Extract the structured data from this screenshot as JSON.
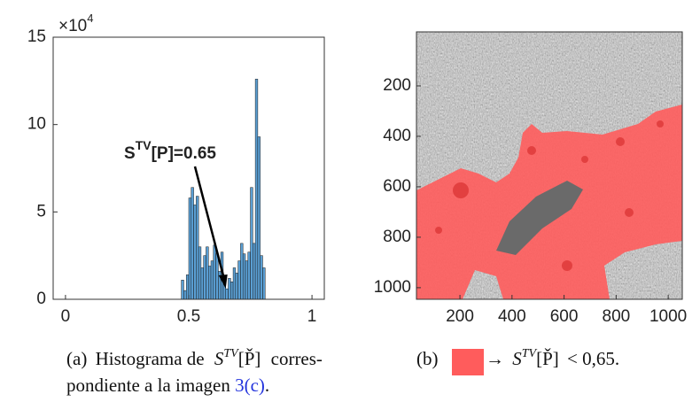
{
  "chart_data": [
    {
      "type": "histogram",
      "exponent_base": "×10",
      "exponent": "4",
      "bins": [
        0.47,
        0.48,
        0.49,
        0.5,
        0.51,
        0.52,
        0.53,
        0.54,
        0.55,
        0.56,
        0.57,
        0.58,
        0.59,
        0.6,
        0.61,
        0.62,
        0.63,
        0.64,
        0.65,
        0.66,
        0.67,
        0.68,
        0.69,
        0.7,
        0.71,
        0.72,
        0.73,
        0.74,
        0.75,
        0.76,
        0.77,
        0.78,
        0.79,
        0.8,
        0.81
      ],
      "values": [
        1.1,
        0.5,
        1.4,
        5.8,
        6.4,
        5.4,
        5.9,
        3.0,
        1.8,
        2.5,
        3.0,
        1.9,
        2.2,
        3.1,
        2.6,
        1.6,
        2.7,
        1.2,
        0.6,
        1.2,
        1.0,
        1.8,
        1.5,
        2.2,
        3.2,
        2.6,
        2.2,
        2.7,
        6.4,
        3.2,
        12.6,
        9.3,
        2.5,
        1.8
      ],
      "color": "#5a9fd4",
      "xlim": [
        -0.05,
        1.05
      ],
      "xticks": [
        0,
        0.5,
        1
      ],
      "ylim": [
        0,
        15
      ],
      "yticks": [
        0,
        5,
        10,
        15
      ],
      "annotation": {
        "main": "S",
        "sup": "TV",
        "rest": "[P]=0.65",
        "x": 0.65
      }
    },
    {
      "type": "image",
      "xlim": [
        33,
        1054
      ],
      "xticks": [
        200,
        400,
        600,
        800,
        1000
      ],
      "ylim": [
        -14,
        1046
      ],
      "yticks": [
        200,
        400,
        600,
        800,
        1000
      ],
      "overlay_color": "#ff5c5c"
    }
  ],
  "captions": [
    {
      "label": "(a)",
      "text1": "Histograma de",
      "var": "S",
      "sup": "TV",
      "arg": "[P̌]",
      "text2": "corres-",
      "text3": "pondiente a la imagen",
      "ref": "3(c)",
      "end": "."
    },
    {
      "label": "(b)",
      "arrow": "→",
      "var": "S",
      "sup": "TV",
      "arg": "[P̌]",
      "text2": "< 0,65."
    }
  ]
}
